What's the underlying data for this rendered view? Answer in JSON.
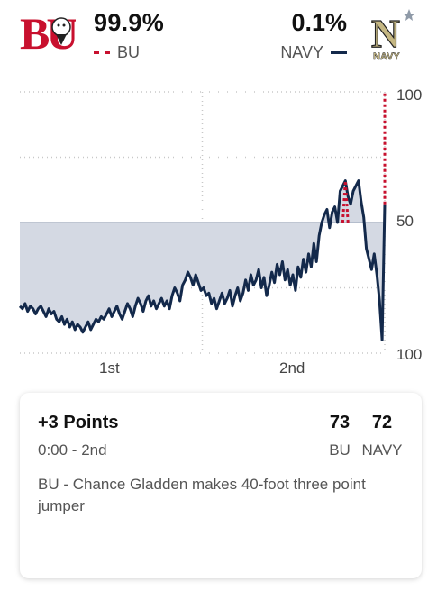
{
  "header": {
    "home": {
      "logo_text": "BU",
      "win_pct": "99.9%",
      "abbr": "BU",
      "color": "#c8102e"
    },
    "away": {
      "logo_text": "NAVY",
      "win_pct": "0.1%",
      "abbr": "NAVY",
      "color": "#13294b"
    }
  },
  "chart_data": {
    "type": "line",
    "ylim": [
      -50,
      50
    ],
    "y_tick_labels": [
      "100",
      "50",
      "100"
    ],
    "x_tick_labels": [
      "1st",
      "2nd"
    ],
    "series": [
      {
        "color": "#13294b",
        "values": [
          -32,
          -33,
          -31,
          -34,
          -32,
          -33,
          -35,
          -33,
          -32,
          -34,
          -36,
          -33,
          -35,
          -34,
          -37,
          -38,
          -36,
          -39,
          -37,
          -40,
          -38,
          -41,
          -39,
          -40,
          -42,
          -40,
          -38,
          -41,
          -39,
          -37,
          -38,
          -36,
          -37,
          -35,
          -33,
          -36,
          -34,
          -32,
          -35,
          -37,
          -34,
          -31,
          -33,
          -36,
          -32,
          -29,
          -31,
          -34,
          -30,
          -28,
          -32,
          -30,
          -33,
          -31,
          -29,
          -32,
          -30,
          -33,
          -28,
          -25,
          -27,
          -30,
          -24,
          -22,
          -19,
          -21,
          -24,
          -20,
          -23,
          -26,
          -25,
          -28,
          -27,
          -31,
          -29,
          -33,
          -30,
          -27,
          -31,
          -29,
          -26,
          -32,
          -28,
          -25,
          -30,
          -27,
          -22,
          -26,
          -20,
          -24,
          -22,
          -18,
          -25,
          -21,
          -28,
          -24,
          -19,
          -23,
          -16,
          -20,
          -15,
          -22,
          -18,
          -24,
          -20,
          -26,
          -17,
          -21,
          -14,
          -19,
          -12,
          -17,
          -8,
          -15,
          -5,
          0,
          3,
          5,
          -2,
          4,
          6,
          0,
          12,
          14,
          16,
          10,
          7,
          12,
          14,
          16,
          8,
          2,
          -10,
          -14,
          -18,
          -12,
          -20,
          -30,
          -45,
          7
        ]
      }
    ]
  },
  "play": {
    "title": "+3 Points",
    "time": "0:00 - 2nd",
    "home_score": "73",
    "away_score": "72",
    "home_abbr": "BU",
    "away_abbr": "NAVY",
    "description": "BU - Chance Gladden makes 40-foot three point jumper"
  }
}
